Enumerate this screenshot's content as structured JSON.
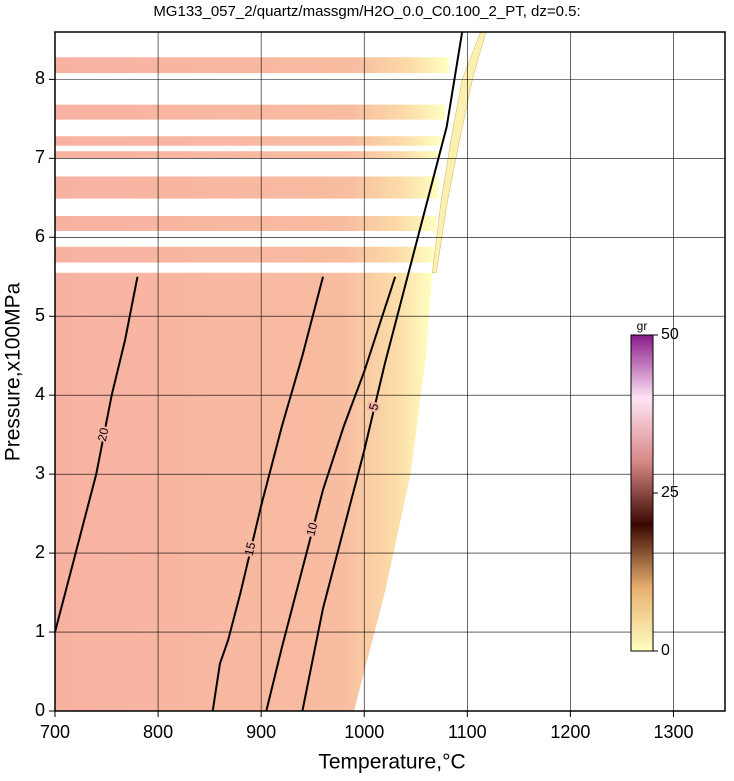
{
  "chart_data": {
    "type": "contour",
    "title": "MG133_057_2/quartz/massgm/H2O_0.0_C0.100_2_PT, dz=0.5:",
    "xlabel": "Temperature,°C",
    "ylabel": "Pressure,x100MPa",
    "xlim": [
      700,
      1350
    ],
    "ylim": [
      0,
      8.6
    ],
    "xticks": [
      700,
      800,
      900,
      1000,
      1100,
      1200,
      1300
    ],
    "yticks": [
      0,
      1,
      2,
      3,
      4,
      5,
      6,
      7,
      8
    ],
    "grid": true,
    "fill_colors": [
      "#f8b2a2",
      "#f8bca0",
      "#fcdca8",
      "#ffffc0"
    ],
    "field": {
      "x": [
        700,
        700,
        1066,
        1060,
        1045,
        1020,
        990
      ],
      "y": [
        0,
        5.55,
        5.55,
        4.5,
        3,
        1.5,
        0
      ]
    },
    "bands": [
      [
        5.68,
        5.88,
        1068
      ],
      [
        6.08,
        6.27,
        1070
      ],
      [
        6.49,
        6.77,
        1072
      ],
      [
        7.0,
        7.09,
        1074
      ],
      [
        7.16,
        7.28,
        1075
      ],
      [
        7.49,
        7.68,
        1078
      ],
      [
        8.08,
        8.28,
        1082
      ]
    ],
    "edge": {
      "x": [
        1066,
        1075,
        1085,
        1095,
        1113,
        1118,
        1105,
        1092,
        1080,
        1070
      ],
      "y": [
        5.55,
        6.5,
        7.3,
        8.0,
        8.6,
        8.6,
        8.0,
        7.2,
        6.4,
        5.55
      ]
    },
    "contours": [
      {
        "level": 20,
        "x": [
          700,
          720,
          740,
          755,
          768,
          780
        ],
        "y": [
          1.0,
          2.0,
          3.0,
          4.0,
          4.7,
          5.5
        ]
      },
      {
        "level": 15,
        "x": [
          853,
          860,
          868,
          880,
          900,
          920,
          940,
          960
        ],
        "y": [
          0,
          0.6,
          0.9,
          1.5,
          2.6,
          3.6,
          4.5,
          5.5
        ]
      },
      {
        "level": 10,
        "x": [
          905,
          920,
          940,
          960,
          980,
          1000,
          1030
        ],
        "y": [
          0,
          0.8,
          1.8,
          2.8,
          3.6,
          4.3,
          5.5
        ]
      },
      {
        "level": 5,
        "x": [
          940,
          960,
          980,
          1000,
          1020,
          1040,
          1060,
          1080,
          1095
        ],
        "y": [
          0,
          1.3,
          2.3,
          3.3,
          4.4,
          5.4,
          6.4,
          7.4,
          8.6
        ]
      }
    ],
    "colorbar": {
      "label": "gr",
      "lim": [
        0,
        50
      ],
      "ticks": [
        0,
        25,
        50
      ],
      "colors": [
        "#ffffc0",
        "#e8b070",
        "#3a0800",
        "#d88888",
        "#ffe4f4",
        "#8a1a8a"
      ]
    }
  }
}
